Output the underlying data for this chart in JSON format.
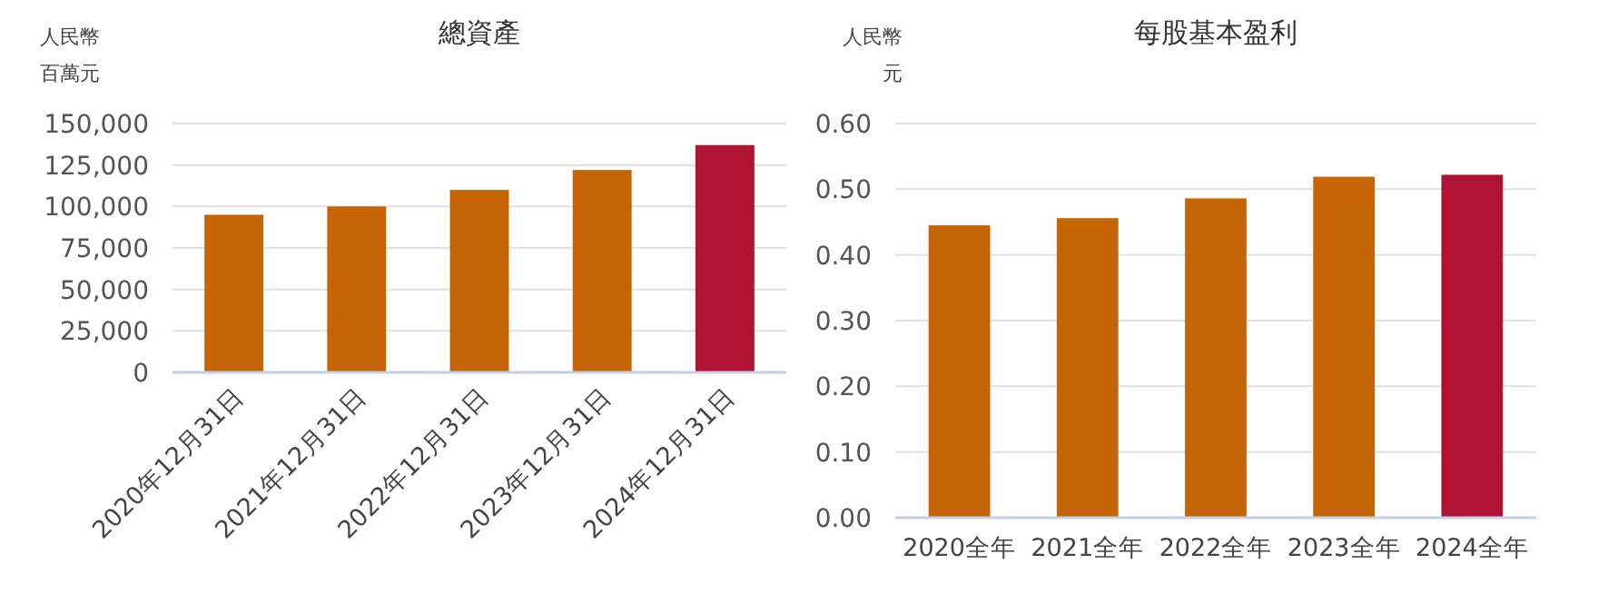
{
  "chart_data": [
    {
      "type": "bar",
      "title": "總資產",
      "ylabel": "人民幣百萬元",
      "categories": [
        "2020年12月31日",
        "2021年12月31日",
        "2022年12月31日",
        "2023年12月31日",
        "2024年12月31日"
      ],
      "values": [
        95000,
        100000,
        110000,
        122000,
        137000
      ],
      "colors": [
        "#c66505",
        "#c66505",
        "#c66505",
        "#c66505",
        "#b01232"
      ],
      "ylim": [
        0,
        150000
      ],
      "yticks": [
        {
          "value": 0,
          "label": "0"
        },
        {
          "value": 25000,
          "label": "25,000"
        },
        {
          "value": 50000,
          "label": "50,000"
        },
        {
          "value": 75000,
          "label": "75,000"
        },
        {
          "value": 100000,
          "label": "100,000"
        },
        {
          "value": 125000,
          "label": "125,000"
        },
        {
          "value": 150000,
          "label": "150,000"
        }
      ],
      "grid": "y"
    },
    {
      "type": "bar",
      "title": "每股基本盈利",
      "ylabel": "人民幣元",
      "categories": [
        "2020全年",
        "2021全年",
        "2022全年",
        "2023全年",
        "2024全年"
      ],
      "values": [
        0.445,
        0.456,
        0.486,
        0.519,
        0.522
      ],
      "colors": [
        "#c66505",
        "#c66505",
        "#c66505",
        "#c66505",
        "#b01232"
      ],
      "ylim": [
        0,
        0.6
      ],
      "yticks": [
        {
          "value": 0,
          "label": "0.00"
        },
        {
          "value": 0.1,
          "label": "0.10"
        },
        {
          "value": 0.2,
          "label": "0.20"
        },
        {
          "value": 0.3,
          "label": "0.30"
        },
        {
          "value": 0.4,
          "label": "0.40"
        },
        {
          "value": 0.5,
          "label": "0.50"
        },
        {
          "value": 0.6,
          "label": "0.60"
        }
      ],
      "grid": "y"
    }
  ]
}
